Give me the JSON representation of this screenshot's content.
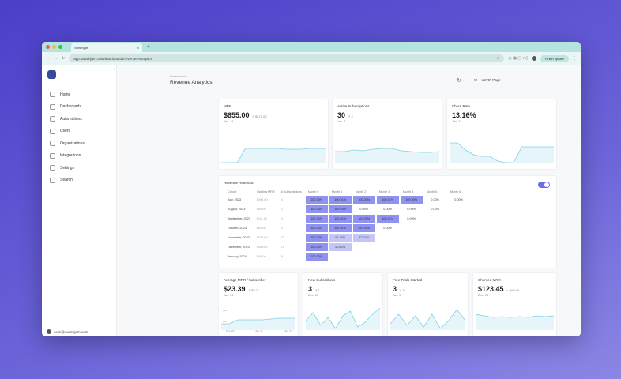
{
  "browser": {
    "tab_title": "Switchjam",
    "url": "app.switchjam.com/dashboards/revenue-analytics",
    "finish_update": "Finish update"
  },
  "sidebar": {
    "items": [
      {
        "label": "Home"
      },
      {
        "label": "Dashboards"
      },
      {
        "label": "Automations"
      },
      {
        "label": "Users"
      },
      {
        "label": "Organizations"
      },
      {
        "label": "Integrations"
      },
      {
        "label": "Settings"
      },
      {
        "label": "Search"
      }
    ],
    "user_email": "colin@switchjam.com"
  },
  "header": {
    "breadcrumb": "Dashboards",
    "title": "Revenue Analytics",
    "date_range": "Last 30 Days"
  },
  "metrics": [
    {
      "label": "MRR",
      "value": "$655.00",
      "delta": "↗ $272.00",
      "date": "Jan. 24"
    },
    {
      "label": "Active Subscriptions",
      "value": "30",
      "delta": "↗ 2",
      "date": "Jan. 7"
    },
    {
      "label": "Churn Rate",
      "value": "13.16%",
      "delta": "",
      "date": "Jan. 24"
    }
  ],
  "retention": {
    "title": "Revenue Retention",
    "toggle_on": true,
    "headers": [
      "Cohort",
      "Starting MRR",
      "# Subscriptions",
      "Month 0",
      "Month 1",
      "Month 2",
      "Month 3",
      "Month 4",
      "Month 5",
      "Month 6"
    ],
    "rows": [
      {
        "cohort": "July, 2023",
        "mrr": "$394.00",
        "subs": "4",
        "cells": [
          "100.00%",
          "100.01%",
          "100.00%",
          "100.01%",
          "100.00%",
          "0.00%",
          "0.00%"
        ]
      },
      {
        "cohort": "August, 2023",
        "mrr": "$49.00",
        "subs": "1",
        "cells": [
          "100.00%",
          "100.00%",
          "0.00%",
          "0.00%",
          "0.00%",
          "0.00%"
        ]
      },
      {
        "cohort": "September, 2023",
        "mrr": "$111.00",
        "subs": "4",
        "cells": [
          "100.00%",
          "100.01%",
          "100.00%",
          "100.01%",
          "0.00%"
        ]
      },
      {
        "cohort": "October, 2023",
        "mrr": "$90.00",
        "subs": "2",
        "cells": [
          "100.00%",
          "100.01%",
          "100.00%",
          "0.00%"
        ]
      },
      {
        "cohort": "November, 2023",
        "mrr": "$233.00",
        "subs": "11",
        "cells": [
          "100.00%",
          "61.40%",
          "47.07%"
        ]
      },
      {
        "cohort": "December, 2023",
        "mrr": "$189.00",
        "subs": "10",
        "cells": [
          "100.00%",
          "50.62%"
        ]
      },
      {
        "cohort": "January, 2024",
        "mrr": "$96.00",
        "subs": "8",
        "cells": [
          "100.00%"
        ]
      }
    ]
  },
  "metrics2": [
    {
      "label": "Average MRR / Subscriber",
      "value": "$23.39",
      "delta": "↗ $5.21",
      "date": "Jan. 24",
      "axis": {
        "y": [
          "$30",
          "$15"
        ],
        "x": [
          "Dec. 26",
          "Jan. 3",
          "Jan. 24"
        ]
      }
    },
    {
      "label": "New Subscribers",
      "value": "3",
      "delta": "↗ 1",
      "date": "Dec. 25"
    },
    {
      "label": "Free Trials Started",
      "value": "3",
      "delta": "↘ 3",
      "date": "Jan. 3"
    },
    {
      "label": "Churned MRR",
      "value": "$123.45",
      "delta": "↘ $60.00",
      "date": "Dec. 24"
    }
  ],
  "colors": {
    "accent": "#6b6fe6",
    "cell_full": "#8f93ef",
    "line": "#7fd0e6",
    "tabbar": "#b5e3df"
  }
}
